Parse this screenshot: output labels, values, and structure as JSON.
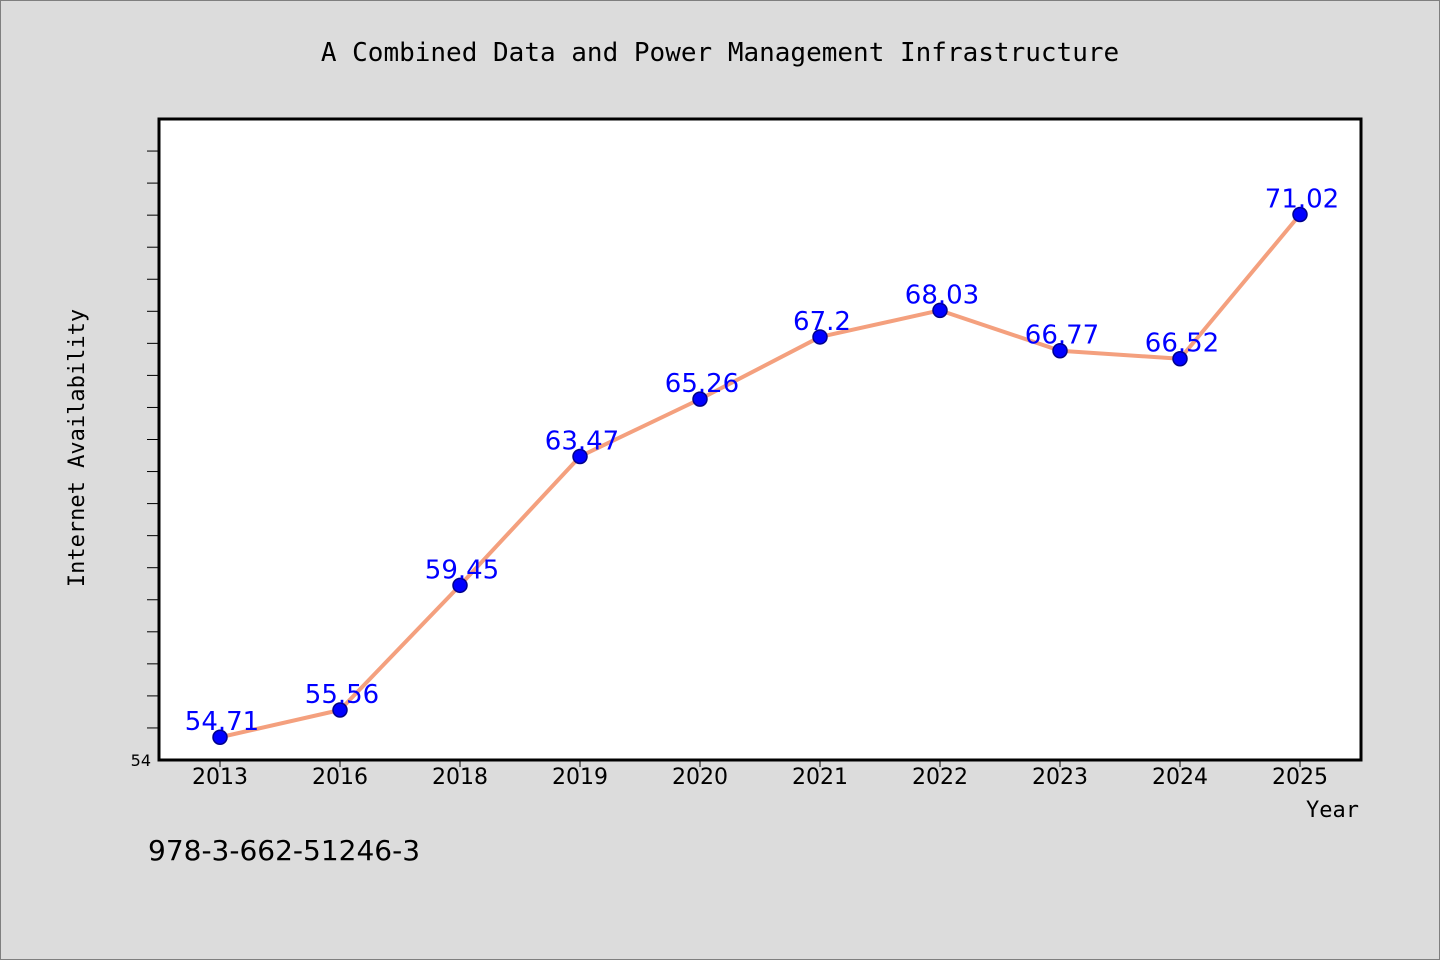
{
  "chart_data": {
    "type": "line",
    "title": "A Combined Data and Power Management Infrastructure",
    "xlabel": "Year",
    "ylabel": "Internet Availability",
    "categories": [
      "2013",
      "2016",
      "2018",
      "2019",
      "2020",
      "2021",
      "2022",
      "2023",
      "2024",
      "2025"
    ],
    "values": [
      54.71,
      55.56,
      59.45,
      63.47,
      65.26,
      67.2,
      68.03,
      66.77,
      66.52,
      71.02
    ],
    "data_labels": [
      "54.71",
      "55.56",
      "59.45",
      "63.47",
      "65.26",
      "67.2",
      "68.03",
      "66.77",
      "66.52",
      "71.02"
    ],
    "ylim": [
      54,
      74
    ],
    "ytick_labels": [
      "54"
    ],
    "grid": false,
    "colors": {
      "line": "#f4a07e",
      "marker_fill": "#0000ff",
      "marker_edge": "#00008b",
      "data_label": "#0000ff",
      "background": "#dcdcdc",
      "plot_area": "#ffffff"
    }
  },
  "footnote": "978-3-662-51246-3"
}
